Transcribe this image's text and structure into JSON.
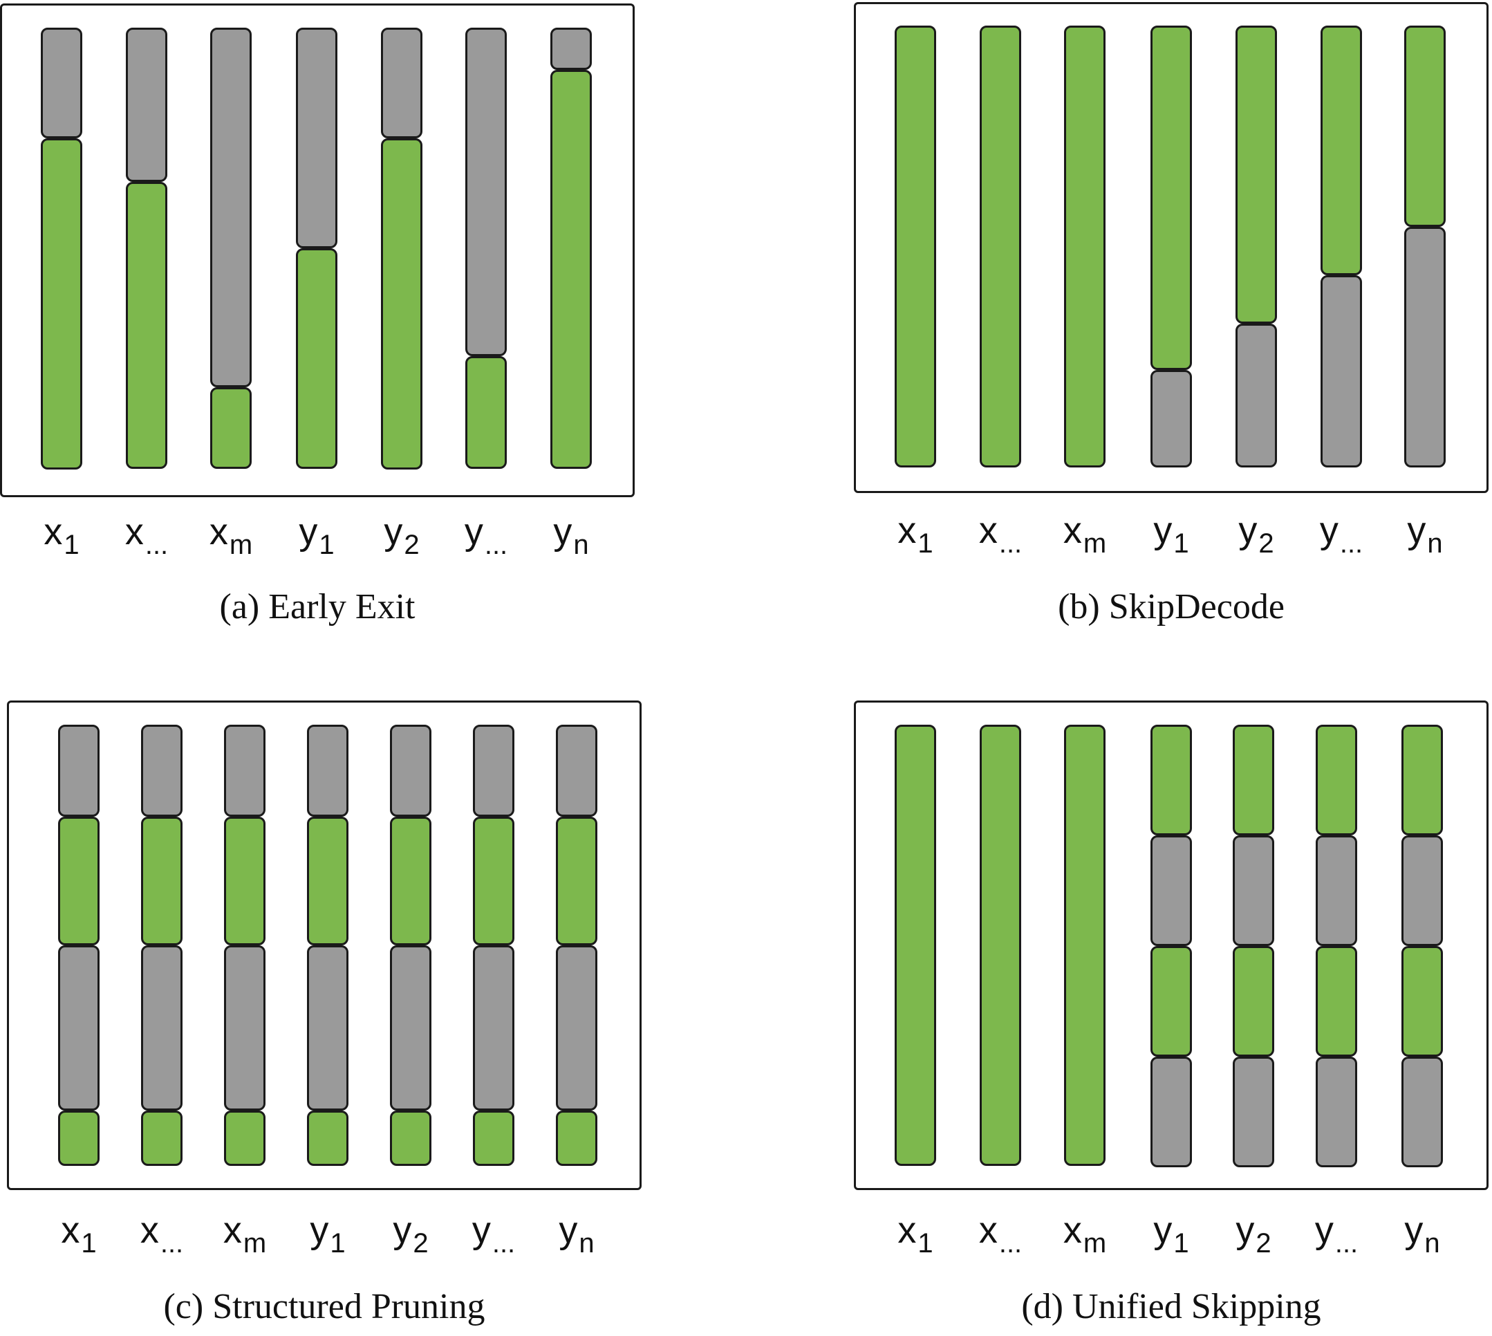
{
  "colors": {
    "active": "#7db84d",
    "skipped": "#9a9a9a",
    "skipped_light": "#a8a8a8",
    "frame": "#1a1a1a"
  },
  "panels": [
    {
      "id": "a",
      "caption": "(a) Early Exit",
      "tokens": [
        {
          "base": "x",
          "sub": "1"
        },
        {
          "base": "x",
          "sub": "..."
        },
        {
          "base": "x",
          "sub": "m"
        },
        {
          "base": "y",
          "sub": "1"
        },
        {
          "base": "y",
          "sub": "2"
        },
        {
          "base": "y",
          "sub": "..."
        },
        {
          "base": "y",
          "sub": "n"
        }
      ],
      "columns": [
        [
          {
            "state": "skipped",
            "frac": 0.25
          },
          {
            "state": "active",
            "frac": 0.75
          }
        ],
        [
          {
            "state": "skipped",
            "frac": 0.35
          },
          {
            "state": "active",
            "frac": 0.65
          }
        ],
        [
          {
            "state": "skipped",
            "frac": 0.815
          },
          {
            "state": "active",
            "frac": 0.185
          }
        ],
        [
          {
            "state": "skipped",
            "frac": 0.5
          },
          {
            "state": "active",
            "frac": 0.5
          }
        ],
        [
          {
            "state": "skipped",
            "frac": 0.25
          },
          {
            "state": "active",
            "frac": 0.75
          }
        ],
        [
          {
            "state": "skipped",
            "frac": 0.745
          },
          {
            "state": "active",
            "frac": 0.255
          }
        ],
        [
          {
            "state": "skipped",
            "frac": 0.095
          },
          {
            "state": "active",
            "frac": 0.905
          }
        ]
      ]
    },
    {
      "id": "b",
      "caption": "(b) SkipDecode",
      "tokens": [
        {
          "base": "x",
          "sub": "1"
        },
        {
          "base": "x",
          "sub": "..."
        },
        {
          "base": "x",
          "sub": "m"
        },
        {
          "base": "y",
          "sub": "1"
        },
        {
          "base": "y",
          "sub": "2"
        },
        {
          "base": "y",
          "sub": "..."
        },
        {
          "base": "y",
          "sub": "n"
        }
      ],
      "columns": [
        [
          {
            "state": "active",
            "frac": 1.0
          }
        ],
        [
          {
            "state": "active",
            "frac": 1.0
          }
        ],
        [
          {
            "state": "active",
            "frac": 1.0
          }
        ],
        [
          {
            "state": "active",
            "frac": 0.78
          },
          {
            "state": "skipped",
            "frac": 0.22
          }
        ],
        [
          {
            "state": "active",
            "frac": 0.675
          },
          {
            "state": "skipped",
            "frac": 0.325
          }
        ],
        [
          {
            "state": "active",
            "frac": 0.565
          },
          {
            "state": "skipped",
            "frac": 0.435
          }
        ],
        [
          {
            "state": "active",
            "frac": 0.455
          },
          {
            "state": "skipped",
            "frac": 0.545
          }
        ]
      ]
    },
    {
      "id": "c",
      "caption": "(c) Structured Pruning",
      "tokens": [
        {
          "base": "x",
          "sub": "1"
        },
        {
          "base": "x",
          "sub": "..."
        },
        {
          "base": "x",
          "sub": "m"
        },
        {
          "base": "y",
          "sub": "1"
        },
        {
          "base": "y",
          "sub": "2"
        },
        {
          "base": "y",
          "sub": "..."
        },
        {
          "base": "y",
          "sub": "n"
        }
      ],
      "columns": [
        [
          {
            "state": "skipped",
            "frac": 0.208
          },
          {
            "state": "active",
            "frac": 0.292
          },
          {
            "state": "skipped",
            "frac": 0.375
          },
          {
            "state": "active",
            "frac": 0.125
          }
        ],
        [
          {
            "state": "skipped",
            "frac": 0.208
          },
          {
            "state": "active",
            "frac": 0.292
          },
          {
            "state": "skipped",
            "frac": 0.375
          },
          {
            "state": "active",
            "frac": 0.125
          }
        ],
        [
          {
            "state": "skipped",
            "frac": 0.208
          },
          {
            "state": "active",
            "frac": 0.292
          },
          {
            "state": "skipped",
            "frac": 0.375
          },
          {
            "state": "active",
            "frac": 0.125
          }
        ],
        [
          {
            "state": "skipped",
            "frac": 0.208
          },
          {
            "state": "active",
            "frac": 0.292
          },
          {
            "state": "skipped",
            "frac": 0.375
          },
          {
            "state": "active",
            "frac": 0.125
          }
        ],
        [
          {
            "state": "skipped",
            "frac": 0.208
          },
          {
            "state": "active",
            "frac": 0.292
          },
          {
            "state": "skipped",
            "frac": 0.375
          },
          {
            "state": "active",
            "frac": 0.125
          }
        ],
        [
          {
            "state": "skipped",
            "frac": 0.208
          },
          {
            "state": "active",
            "frac": 0.292
          },
          {
            "state": "skipped",
            "frac": 0.375
          },
          {
            "state": "active",
            "frac": 0.125
          }
        ],
        [
          {
            "state": "skipped",
            "frac": 0.208
          },
          {
            "state": "active",
            "frac": 0.292
          },
          {
            "state": "skipped",
            "frac": 0.375
          },
          {
            "state": "active",
            "frac": 0.125
          }
        ]
      ]
    },
    {
      "id": "d",
      "caption": "(d) Unified Skipping",
      "tokens": [
        {
          "base": "x",
          "sub": "1"
        },
        {
          "base": "x",
          "sub": "..."
        },
        {
          "base": "x",
          "sub": "m"
        },
        {
          "base": "y",
          "sub": "1"
        },
        {
          "base": "y",
          "sub": "2"
        },
        {
          "base": "y",
          "sub": "..."
        },
        {
          "base": "y",
          "sub": "n"
        }
      ],
      "columns": [
        [
          {
            "state": "active",
            "frac": 1.0
          }
        ],
        [
          {
            "state": "active",
            "frac": 1.0
          }
        ],
        [
          {
            "state": "active",
            "frac": 1.0
          }
        ],
        [
          {
            "state": "active",
            "frac": 0.25
          },
          {
            "state": "skipped",
            "frac": 0.25
          },
          {
            "state": "active",
            "frac": 0.25
          },
          {
            "state": "skipped",
            "frac": 0.25
          }
        ],
        [
          {
            "state": "active",
            "frac": 0.25
          },
          {
            "state": "skipped",
            "frac": 0.25
          },
          {
            "state": "active",
            "frac": 0.25
          },
          {
            "state": "skipped",
            "frac": 0.25
          }
        ],
        [
          {
            "state": "active",
            "frac": 0.25
          },
          {
            "state": "skipped",
            "frac": 0.25
          },
          {
            "state": "active",
            "frac": 0.25
          },
          {
            "state": "skipped",
            "frac": 0.25
          }
        ],
        [
          {
            "state": "active",
            "frac": 0.25
          },
          {
            "state": "skipped",
            "frac": 0.25
          },
          {
            "state": "active",
            "frac": 0.25
          },
          {
            "state": "skipped",
            "frac": 0.25
          }
        ]
      ]
    }
  ]
}
